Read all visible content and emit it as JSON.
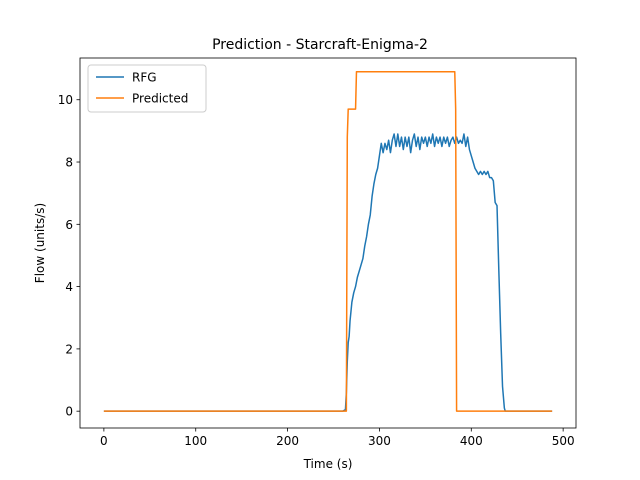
{
  "chart_data": {
    "type": "line",
    "title": "Prediction - Starcraft-Enigma-2",
    "xlabel": "Time (s)",
    "ylabel": "Flow (units/s)",
    "xlim": [
      -26,
      514
    ],
    "ylim": [
      -0.54,
      11.34
    ],
    "xticks": [
      0,
      100,
      200,
      300,
      400,
      500
    ],
    "yticks": [
      0,
      2,
      4,
      6,
      8,
      10
    ],
    "grid": false,
    "legend_position": "upper left",
    "series": [
      {
        "name": "RFG",
        "color": "#1f77b4",
        "points": [
          [
            0,
            0
          ],
          [
            100,
            0
          ],
          [
            200,
            0
          ],
          [
            260,
            0
          ],
          [
            263,
            0.05
          ],
          [
            264,
            0.6
          ],
          [
            265,
            1.6
          ],
          [
            266,
            2.2
          ],
          [
            267,
            2.4
          ],
          [
            268,
            2.9
          ],
          [
            269,
            3.2
          ],
          [
            270,
            3.5
          ],
          [
            272,
            3.8
          ],
          [
            274,
            4.0
          ],
          [
            276,
            4.3
          ],
          [
            278,
            4.5
          ],
          [
            280,
            4.7
          ],
          [
            282,
            4.9
          ],
          [
            284,
            5.3
          ],
          [
            286,
            5.6
          ],
          [
            288,
            6.0
          ],
          [
            290,
            6.3
          ],
          [
            292,
            6.9
          ],
          [
            294,
            7.3
          ],
          [
            296,
            7.6
          ],
          [
            298,
            7.8
          ],
          [
            300,
            8.2
          ],
          [
            302,
            8.6
          ],
          [
            304,
            8.3
          ],
          [
            306,
            8.6
          ],
          [
            308,
            8.4
          ],
          [
            310,
            8.7
          ],
          [
            312,
            8.3
          ],
          [
            314,
            8.7
          ],
          [
            316,
            8.9
          ],
          [
            318,
            8.5
          ],
          [
            320,
            8.9
          ],
          [
            322,
            8.5
          ],
          [
            324,
            8.8
          ],
          [
            326,
            8.4
          ],
          [
            328,
            8.8
          ],
          [
            330,
            8.5
          ],
          [
            332,
            8.8
          ],
          [
            334,
            8.3
          ],
          [
            336,
            8.7
          ],
          [
            338,
            8.9
          ],
          [
            340,
            8.5
          ],
          [
            342,
            8.8
          ],
          [
            344,
            8.4
          ],
          [
            346,
            8.8
          ],
          [
            348,
            8.6
          ],
          [
            350,
            8.8
          ],
          [
            352,
            8.5
          ],
          [
            354,
            8.8
          ],
          [
            356,
            8.6
          ],
          [
            358,
            8.9
          ],
          [
            360,
            8.5
          ],
          [
            362,
            8.8
          ],
          [
            364,
            8.6
          ],
          [
            366,
            8.8
          ],
          [
            368,
            8.5
          ],
          [
            370,
            8.8
          ],
          [
            372,
            8.6
          ],
          [
            374,
            8.8
          ],
          [
            376,
            8.5
          ],
          [
            378,
            8.7
          ],
          [
            380,
            8.8
          ],
          [
            382,
            8.6
          ],
          [
            384,
            8.8
          ],
          [
            386,
            8.6
          ],
          [
            388,
            8.7
          ],
          [
            390,
            8.6
          ],
          [
            392,
            8.9
          ],
          [
            394,
            8.5
          ],
          [
            396,
            8.8
          ],
          [
            398,
            8.4
          ],
          [
            400,
            8.2
          ],
          [
            402,
            8.0
          ],
          [
            404,
            7.8
          ],
          [
            406,
            7.7
          ],
          [
            408,
            7.6
          ],
          [
            410,
            7.7
          ],
          [
            412,
            7.6
          ],
          [
            414,
            7.7
          ],
          [
            416,
            7.6
          ],
          [
            418,
            7.7
          ],
          [
            420,
            7.5
          ],
          [
            422,
            7.5
          ],
          [
            424,
            7.4
          ],
          [
            426,
            6.7
          ],
          [
            428,
            6.6
          ],
          [
            430,
            4.5
          ],
          [
            432,
            2.5
          ],
          [
            434,
            0.8
          ],
          [
            436,
            0.1
          ],
          [
            437,
            0
          ],
          [
            450,
            0
          ],
          [
            470,
            0
          ],
          [
            488,
            0
          ]
        ]
      },
      {
        "name": "Predicted",
        "color": "#ff7f0e",
        "points": [
          [
            0,
            0
          ],
          [
            100,
            0
          ],
          [
            200,
            0
          ],
          [
            264,
            0
          ],
          [
            265,
            8.8
          ],
          [
            266,
            9.7
          ],
          [
            274,
            9.7
          ],
          [
            275,
            10.9
          ],
          [
            380,
            10.9
          ],
          [
            382,
            10.9
          ],
          [
            383,
            9.7
          ],
          [
            384,
            0
          ],
          [
            400,
            0
          ],
          [
            450,
            0
          ],
          [
            488,
            0
          ]
        ]
      }
    ]
  }
}
